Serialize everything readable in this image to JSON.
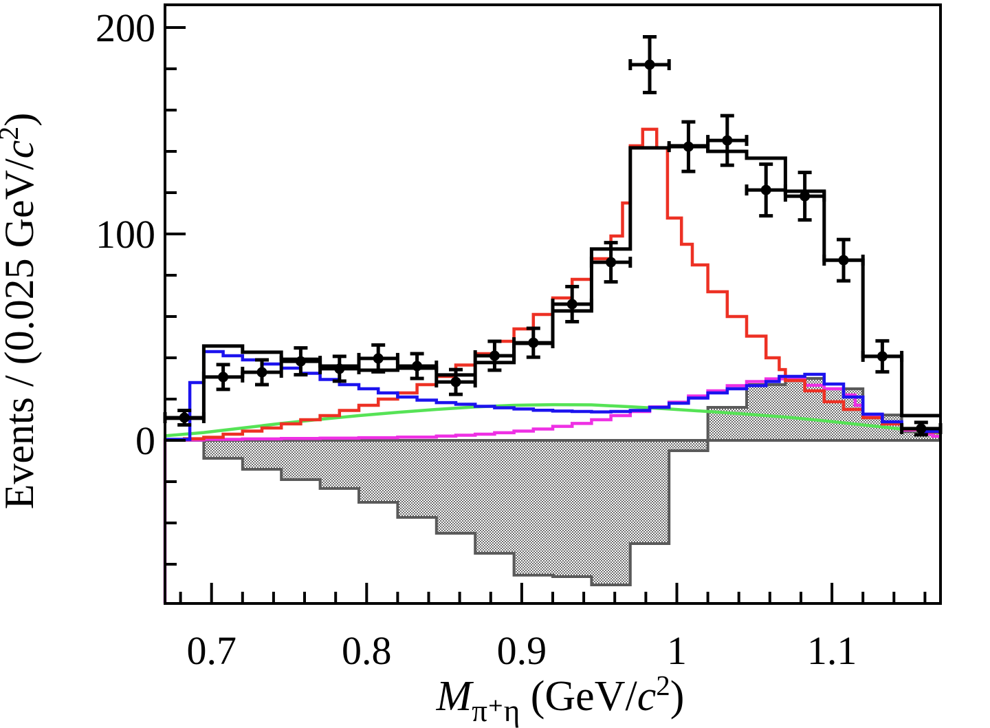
{
  "figure": {
    "background": "#ffffff",
    "description": "pi+ eta invariant mass spectrum with fit components"
  },
  "chart_data": {
    "type": "bar",
    "subtype": "hep-histogram",
    "title": "",
    "xlabel_segments": [
      {
        "t": "M",
        "italic": true
      },
      {
        "t": "π⁺η",
        "sub": true
      },
      {
        "t": " (GeV/"
      },
      {
        "t": "c",
        "italic": true
      },
      {
        "t": "2",
        "sup": true
      },
      {
        "t": ")"
      }
    ],
    "ylabel_segments": [
      {
        "t": "Events / (0.025 GeV/"
      },
      {
        "t": "c",
        "italic": true
      },
      {
        "t": "2",
        "sup": true
      },
      {
        "t": ")"
      }
    ],
    "xlim": [
      0.67,
      1.17
    ],
    "ylim": [
      -79,
      211
    ],
    "grid": false,
    "legend": "none",
    "x_major_ticks": [
      {
        "v": 0.7,
        "label": "0.7"
      },
      {
        "v": 0.8,
        "label": "0.8"
      },
      {
        "v": 0.9,
        "label": "0.9"
      },
      {
        "v": 1.0,
        "label": "1"
      },
      {
        "v": 1.1,
        "label": "1.1"
      }
    ],
    "x_minor_start": 0.68,
    "x_minor_step": 0.02,
    "y_major_ticks": [
      {
        "v": 0,
        "label": "0"
      },
      {
        "v": 100,
        "label": "100"
      },
      {
        "v": 200,
        "label": "200"
      }
    ],
    "y_minor_start": -60,
    "y_minor_step": 20,
    "bin_width": 0.025,
    "bin_edges": [
      0.67,
      0.695,
      0.72,
      0.745,
      0.77,
      0.795,
      0.82,
      0.845,
      0.87,
      0.895,
      0.92,
      0.945,
      0.97,
      0.995,
      1.02,
      1.045,
      1.07,
      1.095,
      1.12,
      1.145,
      1.17
    ],
    "bin_centers": [
      0.6825,
      0.7075,
      0.7325,
      0.7575,
      0.7825,
      0.8075,
      0.8325,
      0.8575,
      0.8825,
      0.9075,
      0.9325,
      0.9575,
      0.9825,
      1.0075,
      1.0325,
      1.0575,
      1.0825,
      1.1075,
      1.1325,
      1.1575
    ],
    "series": {
      "data_points": {
        "name": "data",
        "color": "#000000",
        "marker": "filled-circle",
        "values": [
          11,
          30.7,
          33,
          38.3,
          34.7,
          39.7,
          36,
          28.3,
          41,
          47.3,
          66,
          86.3,
          182,
          142.3,
          145.3,
          121.3,
          118.3,
          87.3,
          40.7,
          5.7
        ],
        "errors": [
          3.5,
          6,
          6,
          6.5,
          6,
          6.5,
          6,
          6,
          7,
          7,
          8.5,
          9.5,
          13.5,
          12,
          12,
          12.5,
          11.5,
          10,
          7.5,
          3
        ]
      },
      "total_fit": {
        "name": "total-fit",
        "color": "#000000",
        "values": [
          10.7,
          45.7,
          42.7,
          39.3,
          36,
          34,
          35,
          31.7,
          37.7,
          47,
          62.7,
          92.7,
          141.7,
          142.7,
          140,
          136.7,
          120.7,
          87.3,
          40.7,
          12
        ]
      },
      "hatched_residual": {
        "name": "hatched-residual",
        "outline_color": "#5a5a5a",
        "fill": "checker-pattern",
        "pattern_color": "#6e6e6e",
        "values": [
          0,
          -8.7,
          -14,
          -19,
          -23.3,
          -30,
          -37.3,
          -45,
          -54.7,
          -65.3,
          -66,
          -70,
          -50,
          -5,
          16,
          27,
          30,
          25,
          12.3,
          4.3
        ]
      },
      "red_component": {
        "name": "signal-a0(980)",
        "color": "#ed3124",
        "steps": [
          [
            0.67,
            0.3
          ],
          [
            0.6825,
            0.8
          ],
          [
            0.695,
            1.5
          ],
          [
            0.7075,
            3
          ],
          [
            0.72,
            4.5
          ],
          [
            0.7325,
            6
          ],
          [
            0.745,
            8
          ],
          [
            0.7575,
            10
          ],
          [
            0.77,
            12
          ],
          [
            0.7825,
            14.5
          ],
          [
            0.795,
            17
          ],
          [
            0.8075,
            20
          ],
          [
            0.82,
            23
          ],
          [
            0.8325,
            27
          ],
          [
            0.845,
            31
          ],
          [
            0.8575,
            36.5
          ],
          [
            0.87,
            42
          ],
          [
            0.8825,
            48
          ],
          [
            0.895,
            54
          ],
          [
            0.9075,
            61
          ],
          [
            0.92,
            69
          ],
          [
            0.9325,
            78
          ],
          [
            0.945,
            88
          ],
          [
            0.9575,
            99
          ],
          [
            0.965,
            115
          ],
          [
            0.97,
            142.7
          ],
          [
            0.978,
            150.7
          ],
          [
            0.987,
            141.7
          ],
          [
            0.994,
            107.7
          ],
          [
            1.003,
            95
          ],
          [
            1.01,
            85
          ],
          [
            1.02,
            72
          ],
          [
            1.0325,
            60
          ],
          [
            1.045,
            50.5
          ],
          [
            1.0575,
            40
          ],
          [
            1.066,
            34.3
          ],
          [
            1.07,
            29
          ],
          [
            1.0825,
            24
          ],
          [
            1.095,
            18.7
          ],
          [
            1.1075,
            15
          ],
          [
            1.12,
            11
          ],
          [
            1.1325,
            8
          ],
          [
            1.145,
            5.5
          ],
          [
            1.1575,
            4
          ]
        ]
      },
      "blue_component": {
        "name": "background-blue",
        "color": "#1c13ee",
        "steps": [
          [
            0.67,
            0.5
          ],
          [
            0.686,
            28
          ],
          [
            0.695,
            43
          ],
          [
            0.7075,
            41
          ],
          [
            0.72,
            39
          ],
          [
            0.7325,
            37
          ],
          [
            0.745,
            35
          ],
          [
            0.7575,
            32.5
          ],
          [
            0.77,
            29.5
          ],
          [
            0.7825,
            27
          ],
          [
            0.795,
            25
          ],
          [
            0.8075,
            23
          ],
          [
            0.82,
            21
          ],
          [
            0.8325,
            19.5
          ],
          [
            0.845,
            18.3
          ],
          [
            0.8575,
            17.5
          ],
          [
            0.87,
            16.5
          ],
          [
            0.8825,
            15.8
          ],
          [
            0.895,
            15.2
          ],
          [
            0.9075,
            14.6
          ],
          [
            0.92,
            14.2
          ],
          [
            0.9325,
            14
          ],
          [
            0.945,
            13.8
          ],
          [
            0.9575,
            14
          ],
          [
            0.97,
            14.5
          ],
          [
            0.9825,
            16
          ],
          [
            0.995,
            18
          ],
          [
            1.0075,
            20.5
          ],
          [
            1.02,
            23
          ],
          [
            1.0325,
            25
          ],
          [
            1.045,
            26.5
          ],
          [
            1.0575,
            28.5
          ],
          [
            1.066,
            31
          ],
          [
            1.0825,
            32
          ],
          [
            1.095,
            27.3
          ],
          [
            1.1075,
            21
          ],
          [
            1.12,
            12.7
          ],
          [
            1.1325,
            9
          ],
          [
            1.145,
            5.7
          ],
          [
            1.1575,
            4.3
          ]
        ]
      },
      "magenta_component": {
        "name": "background-magenta",
        "color": "#ee30e4",
        "left_edge_drop": true,
        "steps": [
          [
            0.67,
            0.2
          ],
          [
            0.695,
            0.5
          ],
          [
            0.72,
            0.7
          ],
          [
            0.745,
            0.9
          ],
          [
            0.77,
            1.1
          ],
          [
            0.795,
            1.3
          ],
          [
            0.82,
            1.6
          ],
          [
            0.845,
            2.1
          ],
          [
            0.8575,
            2.5
          ],
          [
            0.87,
            3
          ],
          [
            0.8825,
            3.7
          ],
          [
            0.895,
            4.5
          ],
          [
            0.9075,
            5.5
          ],
          [
            0.92,
            6.8
          ],
          [
            0.9325,
            8.2
          ],
          [
            0.945,
            10
          ],
          [
            0.9575,
            12
          ],
          [
            0.97,
            14
          ],
          [
            0.9825,
            16.2
          ],
          [
            0.995,
            18.5
          ],
          [
            1.0075,
            21.5
          ],
          [
            1.02,
            24
          ],
          [
            1.0325,
            26.5
          ],
          [
            1.045,
            28.5
          ],
          [
            1.0575,
            29.8
          ],
          [
            1.07,
            30.3
          ],
          [
            1.0825,
            26.7
          ],
          [
            1.095,
            25
          ],
          [
            1.1075,
            22
          ],
          [
            1.115,
            17
          ],
          [
            1.12,
            12.3
          ],
          [
            1.1325,
            8
          ],
          [
            1.145,
            5
          ],
          [
            1.1575,
            3
          ],
          [
            1.165,
            2
          ]
        ]
      },
      "green_component": {
        "name": "background-green",
        "color": "#56e356",
        "line": [
          [
            0.67,
            2.2
          ],
          [
            0.695,
            3.8
          ],
          [
            0.72,
            6
          ],
          [
            0.745,
            8.2
          ],
          [
            0.77,
            10.2
          ],
          [
            0.795,
            12
          ],
          [
            0.82,
            13.6
          ],
          [
            0.845,
            15
          ],
          [
            0.87,
            16.2
          ],
          [
            0.895,
            17
          ],
          [
            0.92,
            17.3
          ],
          [
            0.945,
            17.2
          ],
          [
            0.97,
            16.3
          ],
          [
            0.995,
            15.2
          ],
          [
            1.02,
            14
          ],
          [
            1.045,
            12.7
          ],
          [
            1.07,
            11.3
          ],
          [
            1.095,
            9.5
          ],
          [
            1.12,
            7.5
          ],
          [
            1.145,
            5.5
          ],
          [
            1.17,
            3.5
          ]
        ]
      }
    }
  }
}
